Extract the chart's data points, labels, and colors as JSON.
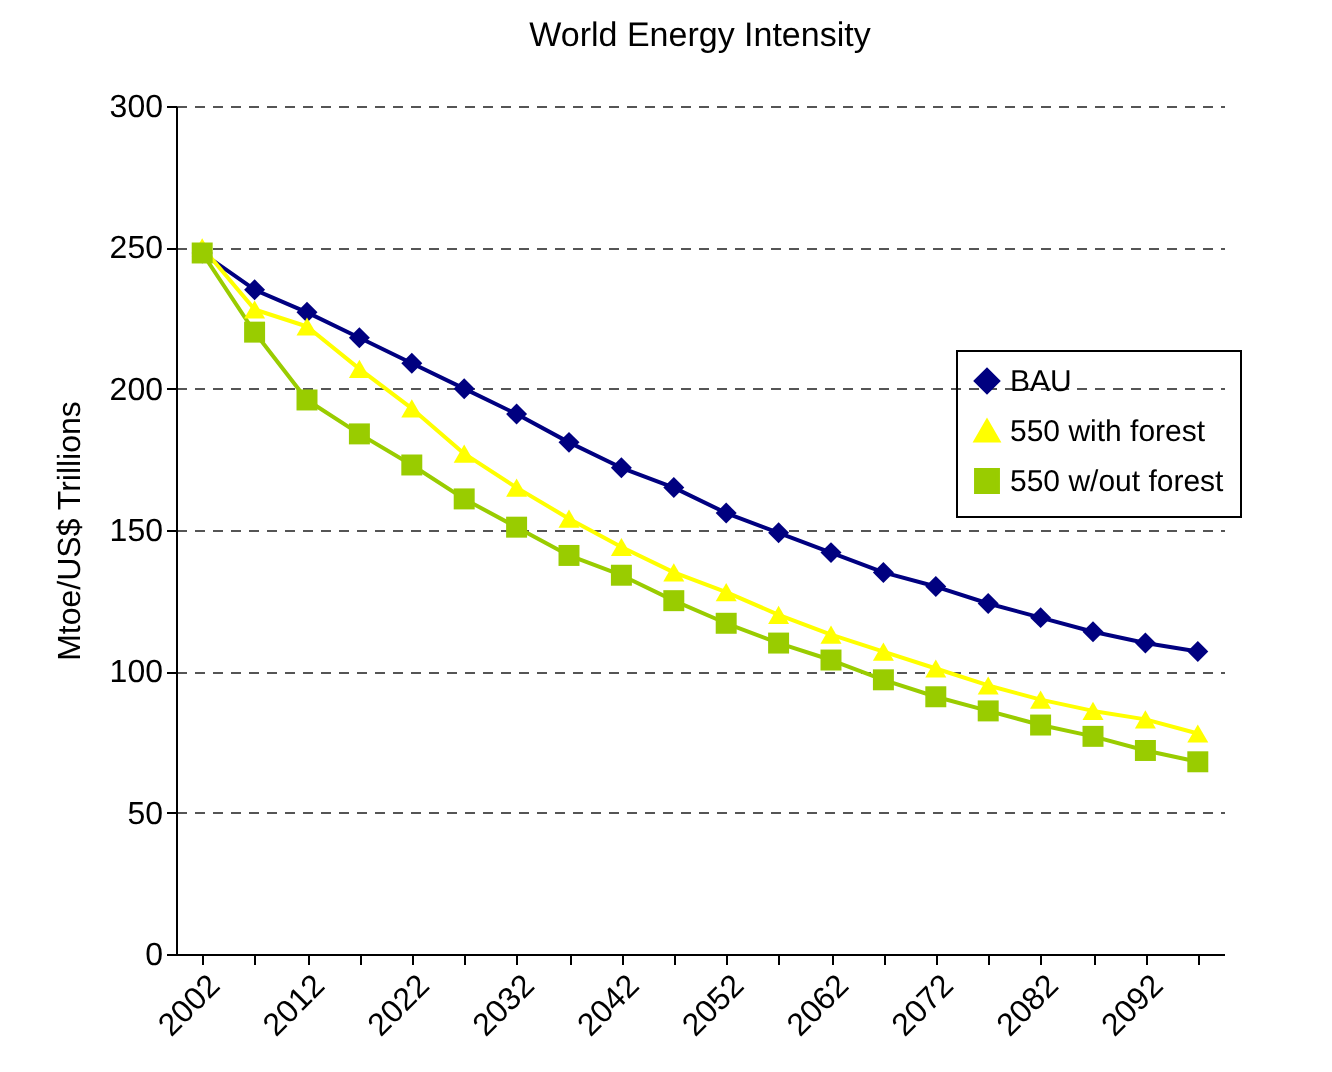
{
  "chart_data": {
    "type": "line",
    "title": "World Energy Intensity",
    "ylabel": "Mtoe/US$ Trillions",
    "categories": [
      "2002",
      null,
      "2012",
      null,
      "2022",
      null,
      "2032",
      null,
      "2042",
      null,
      "2052",
      null,
      "2062",
      null,
      "2072",
      null,
      "2082",
      null,
      "2092",
      null
    ],
    "series": [
      {
        "name": "BAU",
        "color": "#000080",
        "marker": "diamond",
        "values": [
          248,
          235,
          227,
          218,
          209,
          200,
          191,
          181,
          172,
          165,
          156,
          149,
          142,
          135,
          130,
          124,
          119,
          114,
          110,
          107
        ]
      },
      {
        "name": "550 with forest",
        "color": "#ffff00",
        "marker": "triangle",
        "values": [
          250,
          228,
          222,
          207,
          193,
          177,
          165,
          154,
          144,
          135,
          128,
          120,
          113,
          107,
          101,
          95,
          90,
          86,
          83,
          78
        ]
      },
      {
        "name": "550 w/out forest",
        "color": "#99cc00",
        "marker": "square",
        "values": [
          248,
          220,
          196,
          184,
          173,
          161,
          151,
          141,
          134,
          125,
          117,
          110,
          104,
          97,
          91,
          86,
          81,
          77,
          72,
          68
        ]
      }
    ],
    "ylim": [
      0,
      300
    ],
    "yticks": [
      0,
      50,
      100,
      150,
      200,
      250,
      300
    ],
    "grid": "y",
    "legend": "right"
  }
}
